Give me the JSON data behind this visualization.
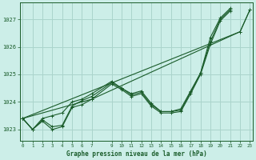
{
  "background_color": "#cceee8",
  "grid_color": "#aad4cc",
  "line_color": "#1a5c2a",
  "title": "Graphe pression niveau de la mer (hPa)",
  "ylabel_values": [
    1023,
    1024,
    1025,
    1026,
    1027
  ],
  "xlim": [
    -0.3,
    23.3
  ],
  "ylim": [
    1022.6,
    1027.6
  ],
  "x_ticks": [
    0,
    1,
    2,
    3,
    4,
    5,
    6,
    7,
    9,
    10,
    11,
    12,
    13,
    14,
    15,
    16,
    17,
    18,
    19,
    20,
    21,
    22,
    23
  ],
  "series": [
    {
      "x": [
        0,
        1,
        2,
        3,
        4,
        5,
        6,
        7,
        9,
        10,
        11,
        12,
        13,
        14,
        15,
        16,
        17,
        18,
        19,
        20,
        21,
        22,
        23
      ],
      "y": [
        1023.4,
        1023.0,
        1023.3,
        1023.0,
        1023.1,
        1023.8,
        1023.9,
        1024.1,
        1024.65,
        1024.45,
        1024.2,
        1024.3,
        1023.85,
        1023.6,
        1023.6,
        1023.65,
        1024.3,
        1025.0,
        1026.1,
        1026.95,
        1027.3,
        null,
        null
      ]
    },
    {
      "x": [
        0,
        1,
        2,
        3,
        4,
        5,
        6,
        7,
        9,
        10,
        11,
        12,
        13,
        14,
        15,
        16,
        17,
        18,
        19,
        20,
        21,
        22,
        23
      ],
      "y": [
        1023.4,
        1023.0,
        1023.35,
        1023.1,
        1023.15,
        1023.85,
        1024.05,
        1024.2,
        1024.7,
        1024.5,
        1024.25,
        1024.35,
        1023.9,
        1023.65,
        1023.65,
        1023.7,
        1024.35,
        1025.05,
        1026.2,
        1027.0,
        1027.35,
        null,
        null
      ]
    },
    {
      "x": [
        0,
        1,
        2,
        3,
        4,
        5,
        6,
        7,
        9,
        10,
        11,
        12,
        13,
        14,
        15,
        16,
        17,
        18,
        19,
        20,
        21,
        22,
        23
      ],
      "y": [
        1023.4,
        1023.0,
        1023.4,
        1023.5,
        1023.6,
        1024.0,
        1024.1,
        1024.3,
        1024.75,
        1024.5,
        1024.3,
        1024.4,
        1023.95,
        1023.65,
        1023.65,
        1023.75,
        1024.4,
        1025.05,
        1026.35,
        1027.05,
        1027.4,
        null,
        null
      ]
    },
    {
      "x": [
        0,
        22,
        23
      ],
      "y": [
        1023.4,
        1026.55,
        1027.35
      ]
    },
    {
      "x": [
        0,
        7,
        22,
        23
      ],
      "y": [
        1023.4,
        1024.1,
        1026.55,
        1027.35
      ]
    }
  ]
}
